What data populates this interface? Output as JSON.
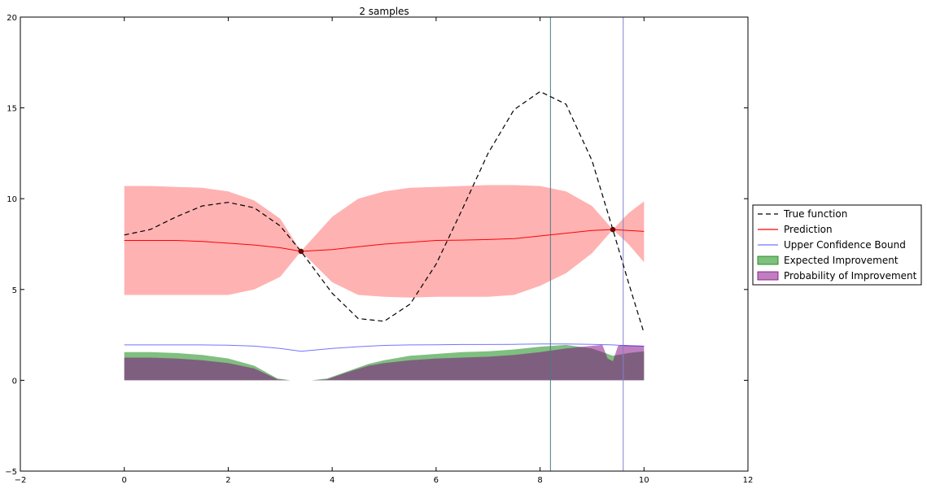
{
  "chart_data": {
    "type": "line",
    "title": "2 samples",
    "xlabel": "",
    "ylabel": "",
    "xlim": [
      -2,
      12
    ],
    "ylim": [
      -5,
      20
    ],
    "xticks": [
      -2,
      0,
      2,
      4,
      6,
      8,
      10,
      12
    ],
    "yticks": [
      -5,
      0,
      5,
      10,
      15,
      20
    ],
    "grid": false,
    "legend_position": "right",
    "colors": {
      "true_function": "#000000",
      "prediction": "#ff0000",
      "band": "#ff0000",
      "ucb": "#0000ff",
      "ei": "#008000",
      "pi": "#800080",
      "samples": "#800000",
      "vline_ei": "#4c7a8a",
      "vline_pi": "#7f7fcf"
    },
    "series": [
      {
        "name": "True function",
        "style": "dashed",
        "x": [
          0,
          0.5,
          1,
          1.5,
          2,
          2.5,
          3,
          3.4,
          4,
          4.5,
          5,
          5.5,
          6,
          6.5,
          7,
          7.5,
          8,
          8.5,
          9,
          9.4,
          9.7,
          10
        ],
        "y": [
          8.0,
          8.3,
          9.0,
          9.6,
          9.8,
          9.5,
          8.5,
          7.1,
          4.8,
          3.4,
          3.25,
          4.2,
          6.4,
          9.4,
          12.5,
          14.9,
          15.9,
          15.2,
          12.1,
          8.3,
          5.4,
          2.6
        ]
      },
      {
        "name": "Prediction",
        "style": "solid",
        "x": [
          0,
          0.5,
          1,
          1.5,
          2,
          2.5,
          3,
          3.4,
          4,
          4.5,
          5,
          5.5,
          6,
          6.5,
          7,
          7.5,
          8,
          8.5,
          9,
          9.4,
          9.7,
          10
        ],
        "y": [
          7.7,
          7.7,
          7.7,
          7.65,
          7.55,
          7.45,
          7.3,
          7.1,
          7.2,
          7.35,
          7.5,
          7.6,
          7.7,
          7.72,
          7.75,
          7.8,
          7.95,
          8.1,
          8.25,
          8.3,
          8.25,
          8.2
        ]
      },
      {
        "name": "Upper Confidence Bound",
        "style": "solid",
        "x": [
          0,
          0.5,
          1,
          1.5,
          2,
          2.5,
          3,
          3.4,
          4,
          4.5,
          5,
          5.5,
          6,
          6.5,
          7,
          7.5,
          8,
          8.5,
          9,
          9.4,
          9.7,
          10
        ],
        "y": [
          1.95,
          1.95,
          1.95,
          1.95,
          1.93,
          1.88,
          1.75,
          1.6,
          1.75,
          1.85,
          1.92,
          1.95,
          1.96,
          1.97,
          1.97,
          1.98,
          2.0,
          2.0,
          1.98,
          1.95,
          1.9,
          1.88
        ]
      },
      {
        "name": "Expected Improvement",
        "style": "fill",
        "x": [
          0,
          0.5,
          1,
          1.5,
          2,
          2.5,
          2.95,
          3.2,
          3.4,
          3.6,
          3.9,
          4.3,
          4.7,
          5,
          5.5,
          6,
          6.5,
          7,
          7.5,
          8,
          8.5,
          9,
          9.4,
          9.7,
          10
        ],
        "y": [
          1.55,
          1.55,
          1.5,
          1.4,
          1.2,
          0.8,
          0.1,
          0.0,
          0.0,
          0.0,
          0.1,
          0.5,
          0.9,
          1.1,
          1.35,
          1.45,
          1.55,
          1.6,
          1.7,
          1.85,
          1.95,
          1.75,
          1.35,
          1.5,
          1.6
        ]
      },
      {
        "name": "Probability of Improvement",
        "style": "fill",
        "x": [
          0,
          0.5,
          1,
          1.5,
          2,
          2.5,
          2.95,
          3.2,
          3.4,
          3.6,
          3.9,
          4.3,
          4.7,
          5,
          5.5,
          6,
          6.5,
          7,
          7.5,
          8,
          8.5,
          9,
          9.2,
          9.3,
          9.4,
          9.5,
          9.6,
          10
        ],
        "y": [
          1.25,
          1.25,
          1.2,
          1.1,
          0.95,
          0.65,
          0.05,
          0.0,
          0.0,
          0.0,
          0.05,
          0.45,
          0.8,
          0.95,
          1.1,
          1.2,
          1.25,
          1.3,
          1.4,
          1.55,
          1.75,
          1.9,
          1.95,
          1.2,
          1.05,
          1.9,
          1.95,
          1.9
        ]
      }
    ],
    "confidence_band": {
      "x": [
        0,
        0.5,
        1,
        1.5,
        2,
        2.5,
        3,
        3.4,
        4,
        4.5,
        5,
        5.5,
        6,
        6.5,
        7,
        7.5,
        8,
        8.5,
        9,
        9.4,
        9.7,
        10
      ],
      "upper": [
        10.7,
        10.7,
        10.65,
        10.6,
        10.4,
        9.9,
        8.9,
        7.1,
        9.0,
        10.0,
        10.4,
        10.6,
        10.65,
        10.7,
        10.75,
        10.75,
        10.7,
        10.4,
        9.6,
        8.3,
        9.2,
        9.85
      ],
      "lower": [
        4.7,
        4.7,
        4.7,
        4.7,
        4.7,
        5.0,
        5.7,
        7.1,
        5.4,
        4.7,
        4.6,
        4.55,
        4.6,
        4.6,
        4.6,
        4.7,
        5.2,
        5.9,
        7.0,
        8.3,
        7.5,
        6.5
      ]
    },
    "samples": {
      "x": [
        3.4,
        9.4
      ],
      "y": [
        7.1,
        8.3
      ]
    },
    "vertical_lines": [
      {
        "x": 8.2,
        "color_key": "vline_ei"
      },
      {
        "x": 9.6,
        "color_key": "vline_pi"
      }
    ]
  }
}
